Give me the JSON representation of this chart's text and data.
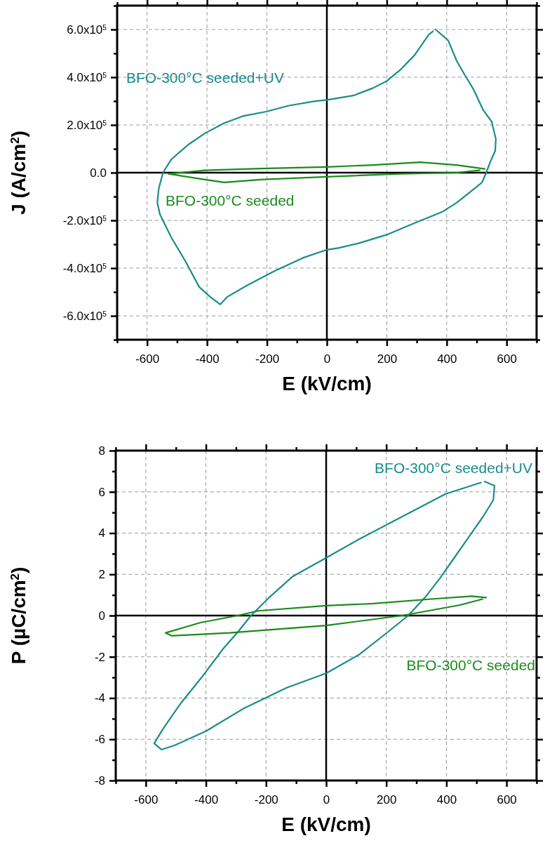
{
  "chart_data": [
    {
      "type": "line",
      "xlabel": "E (kV/cm)",
      "ylabel": "J (A/cm$^{2}$)",
      "xlim": [
        -700,
        700
      ],
      "ylim": [
        -700000,
        700000
      ],
      "xticks": [
        {
          "value": -700,
          "label": null
        },
        -600,
        {
          "value": -500,
          "label": null
        },
        -400,
        {
          "value": -300,
          "label": null
        },
        -200,
        {
          "value": -100,
          "label": null
        },
        0,
        {
          "value": 100,
          "label": null
        },
        200,
        {
          "value": 300,
          "label": null
        },
        400,
        {
          "value": 500,
          "label": null
        },
        600,
        {
          "value": 700,
          "label": null
        }
      ],
      "yticks": [
        {
          "value": -700000,
          "label": null
        },
        {
          "value": -600000,
          "label": "-6.0x10$^{5}$"
        },
        {
          "value": -500000,
          "label": null
        },
        {
          "value": -400000,
          "label": "-4.0x10$^{5}$"
        },
        {
          "value": -300000,
          "label": null
        },
        {
          "value": -200000,
          "label": "-2.0x10$^{5}$"
        },
        {
          "value": -100000,
          "label": null
        },
        {
          "value": 0,
          "label": "0.0"
        },
        {
          "value": 100000,
          "label": null
        },
        {
          "value": 200000,
          "label": "2.0x10$^{5}$"
        },
        {
          "value": 300000,
          "label": null
        },
        {
          "value": 400000,
          "label": "4.0x10$^{5}$"
        },
        {
          "value": 500000,
          "label": null
        },
        {
          "value": 600000,
          "label": "6.0x10$^{5}$"
        },
        {
          "value": 700000,
          "label": null
        }
      ],
      "grid": true,
      "marker": "none",
      "line_style": "solid",
      "series": [
        {
          "name": "BFO-300°C seeded+UV",
          "color": "#1a8c8c",
          "x": [
            363,
            405,
            433,
            461,
            490,
            522,
            550,
            564,
            562,
            545,
            532,
            518,
            481,
            433,
            387,
            293,
            200,
            106,
            41,
            0,
            -80,
            -174,
            -267,
            -333,
            -356,
            -389,
            -426,
            -473,
            -519,
            -557,
            -566,
            -561,
            -547,
            -519,
            -463,
            -407,
            -342,
            -277,
            -202,
            -127,
            -43,
            0,
            88,
            153,
            200,
            247,
            293,
            340,
            354
          ],
          "values": [
            600000,
            554000,
            469000,
            408000,
            348000,
            262000,
            214000,
            141000,
            92000,
            44000,
            0,
            -41000,
            -78000,
            -126000,
            -163000,
            -211000,
            -260000,
            -296000,
            -315000,
            -323000,
            -357000,
            -412000,
            -473000,
            -521000,
            -552000,
            -521000,
            -479000,
            -369000,
            -272000,
            -175000,
            -126000,
            -66000,
            0,
            56000,
            117000,
            165000,
            208000,
            238000,
            256000,
            281000,
            299000,
            305000,
            323000,
            354000,
            384000,
            433000,
            493000,
            578000,
            592000
          ]
        },
        {
          "name": "BFO-300°C seeded",
          "color": "#1a8c1a",
          "x": [
            527,
            433,
            312,
            153,
            0,
            -220,
            -407,
            -529,
            -407,
            -342,
            -220,
            0,
            247,
            433,
            510
          ],
          "values": [
            16000,
            32000,
            44000,
            32000,
            24000,
            17000,
            10000,
            -5000,
            -29000,
            -41000,
            -29000,
            -17000,
            -5000,
            0,
            10000
          ]
        }
      ]
    },
    {
      "type": "line",
      "xlabel": "E (kV/cm)",
      "ylabel": "P (µC/cm$^{2}$)",
      "xlim": [
        -700,
        700
      ],
      "ylim": [
        -8,
        8
      ],
      "xticks": [
        {
          "value": -700,
          "label": null
        },
        -600,
        {
          "value": -500,
          "label": null
        },
        -400,
        {
          "value": -300,
          "label": null
        },
        -200,
        {
          "value": -100,
          "label": null
        },
        0,
        {
          "value": 100,
          "label": null
        },
        200,
        {
          "value": 300,
          "label": null
        },
        400,
        {
          "value": 500,
          "label": null
        },
        600,
        {
          "value": 700,
          "label": null
        }
      ],
      "yticks": [
        -8,
        {
          "value": -7,
          "label": null
        },
        -6,
        {
          "value": -5,
          "label": null
        },
        -4,
        {
          "value": -3,
          "label": null
        },
        -2,
        {
          "value": -1,
          "label": null
        },
        0,
        {
          "value": 1,
          "label": null
        },
        2,
        {
          "value": 3,
          "label": null
        },
        4,
        {
          "value": 5,
          "label": null
        },
        6,
        {
          "value": 7,
          "label": null
        },
        8
      ],
      "grid": true,
      "marker": "none",
      "line_style": "solid",
      "series": [
        {
          "name": "BFO-300°C seeded+UV",
          "color": "#1a8c8c",
          "x": [
            527,
            560,
            556,
            522,
            474,
            426,
            378,
            330,
            273,
            205,
            109,
            0,
            -131,
            -274,
            -399,
            -505,
            -548,
            -572,
            -543,
            -486,
            -409,
            -342,
            -294,
            -250,
            -188,
            -111,
            0,
            109,
            253,
            397,
            515
          ],
          "values": [
            6.5,
            6.3,
            5.6,
            4.8,
            3.8,
            2.8,
            1.8,
            0.9,
            0,
            -0.8,
            -1.9,
            -2.8,
            -3.5,
            -4.5,
            -5.6,
            -6.3,
            -6.5,
            -6.2,
            -5.5,
            -4.3,
            -2.9,
            -1.6,
            -0.8,
            0,
            0.9,
            1.9,
            2.8,
            3.7,
            4.8,
            5.9,
            6.45
          ]
        },
        {
          "name": "BFO-300°C seeded",
          "color": "#1a8c1a",
          "x": [
            532,
            484,
            349,
            157,
            0,
            -226,
            -294,
            -418,
            -534,
            -514,
            -322,
            0,
            253,
            445,
            520
          ],
          "values": [
            0.87,
            0.94,
            0.8,
            0.58,
            0.48,
            0.23,
            0,
            -0.34,
            -0.84,
            -0.98,
            -0.84,
            -0.48,
            0,
            0.51,
            0.8
          ]
        }
      ]
    }
  ]
}
